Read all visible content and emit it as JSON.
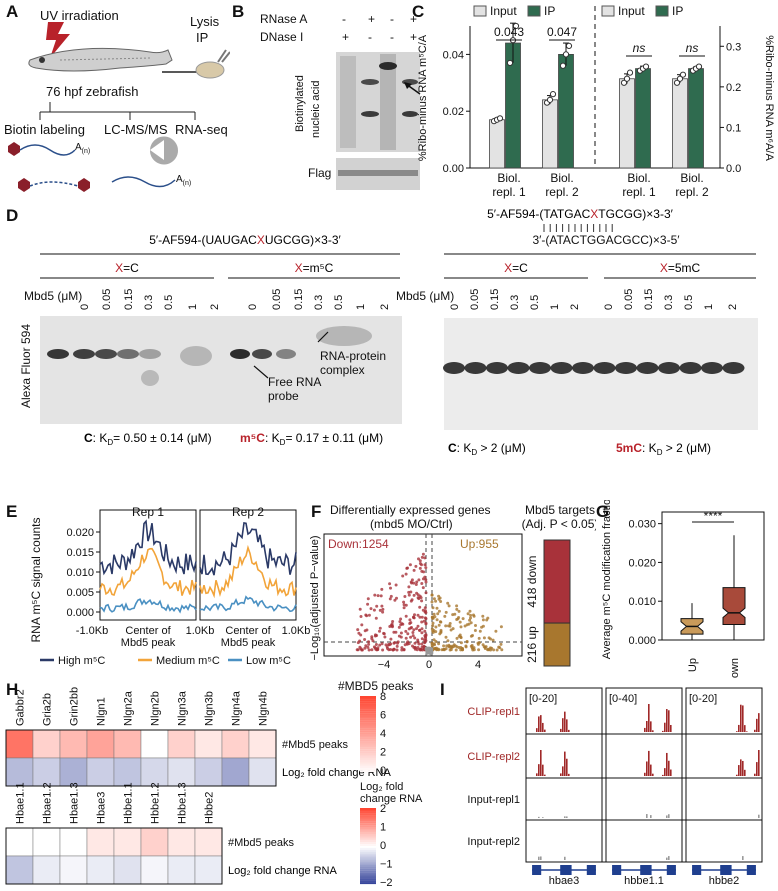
{
  "figure": {
    "panel_labels": [
      "A",
      "B",
      "C",
      "D",
      "E",
      "F",
      "G",
      "H",
      "I"
    ]
  },
  "panelA": {
    "uv": "UV irradiation",
    "lysis": "Lysis",
    "ip": "IP",
    "fish": "76 hpf zebrafish",
    "methods": [
      "Biotin labeling",
      "LC-MS/MS",
      "RNA-seq"
    ],
    "polyA": "A",
    "polyA_sub": "(n)"
  },
  "panelB": {
    "rows": [
      "RNase A",
      "DNase I"
    ],
    "rnaseA": [
      "-",
      "+",
      "-",
      "+"
    ],
    "dnaseI": [
      "+",
      "-",
      "-",
      "+"
    ],
    "ylabel1": "Biotinylated",
    "ylabel2": "nucleic acid",
    "flag": "Flag"
  },
  "panelC": {
    "legend": [
      "Input",
      "IP"
    ],
    "ylabel_left": "%Ribo-minus RNA m⁵C/A",
    "ylabel_right": "%Ribo-minus RNA m⁶A/A",
    "left_ticks": [
      "0.00",
      "0.02",
      "0.04"
    ],
    "right_ticks": [
      "0.0",
      "0.1",
      "0.2",
      "0.3"
    ],
    "groups": [
      "Biol.\nrepl. 1",
      "Biol.\nrepl. 2",
      "Biol.\nrepl. 1",
      "Biol.\nrepl. 2"
    ],
    "pvals": [
      "0.043",
      "0.047",
      "ns",
      "ns"
    ],
    "colors": {
      "input": "#e3e3e3",
      "ip": "#2f6b4f"
    }
  },
  "chart_data": [
    {
      "type": "bar",
      "panel": "C-left",
      "categories": [
        "Biol. repl. 1",
        "Biol. repl. 2"
      ],
      "ylabel": "%Ribo-minus RNA m5C/A",
      "ylim": [
        0,
        0.05
      ],
      "series": [
        {
          "name": "Input",
          "values": [
            0.017,
            0.024
          ]
        },
        {
          "name": "IP",
          "values": [
            0.044,
            0.04
          ]
        }
      ],
      "points": {
        "Input": [
          [
            0.0165,
            0.017,
            0.0175
          ],
          [
            0.023,
            0.024,
            0.026
          ]
        ],
        "IP": [
          [
            0.037,
            0.045,
            0.05
          ],
          [
            0.036,
            0.04,
            0.043
          ]
        ]
      },
      "errors": {
        "Input": [
          0.0005,
          0.0015
        ],
        "IP": [
          0.007,
          0.004
        ]
      }
    },
    {
      "type": "bar",
      "panel": "C-right",
      "categories": [
        "Biol. repl. 1",
        "Biol. repl. 2"
      ],
      "ylabel": "%Ribo-minus RNA m6A/A",
      "ylim": [
        0,
        0.35
      ],
      "series": [
        {
          "name": "Input",
          "values": [
            0.22,
            0.22
          ]
        },
        {
          "name": "IP",
          "values": [
            0.245,
            0.245
          ]
        }
      ],
      "points": {
        "Input": [
          [
            0.21,
            0.22,
            0.235
          ],
          [
            0.21,
            0.22,
            0.23
          ]
        ],
        "IP": [
          [
            0.24,
            0.245,
            0.25
          ],
          [
            0.24,
            0.245,
            0.25
          ]
        ]
      },
      "errors": {
        "Input": [
          0.012,
          0.01
        ],
        "IP": [
          0.006,
          0.004
        ]
      }
    },
    {
      "type": "line",
      "panel": "E",
      "titles": [
        "Rep 1",
        "Rep 2"
      ],
      "ylabel": "RNA m⁵C signal counts",
      "yticks": [
        "0.000",
        "0.005",
        "0.010",
        "0.015",
        "0.020"
      ],
      "ylim": [
        -0.002,
        0.023
      ],
      "xticks": [
        "-1.0Kb",
        "Center of\nMbd5 peak",
        "1.0Kb"
      ],
      "series": [
        {
          "name": "High m⁵C",
          "color": "#2b3a67"
        },
        {
          "name": "Medium m⁵C",
          "color": "#f2a43a"
        },
        {
          "name": "Low m⁵C",
          "color": "#4a90c2"
        }
      ]
    },
    {
      "type": "scatter",
      "panel": "F",
      "title": "Differentially expressed genes",
      "subtitle": "(mbd5 MO/Ctrl)",
      "down_label": "Down:1254",
      "up_label": "Up:955",
      "ylabel": "−Log₁₀(adjusted P−value)",
      "xticks": [
        "−4",
        "0",
        "4"
      ]
    },
    {
      "type": "bar",
      "panel": "F-stack",
      "title": "Mbd5 targets",
      "subtitle": "(Adj. P < 0.05)",
      "categories": [
        "418 down",
        "216 up"
      ],
      "values": [
        418,
        216
      ],
      "colors": [
        "#a8323a",
        "#a8772e"
      ]
    },
    {
      "type": "box",
      "panel": "G",
      "ylabel": "Average m⁵C modification fraction",
      "categories": [
        "Up",
        "Down"
      ],
      "yticks": [
        "0.000",
        "0.010",
        "0.020",
        "0.030"
      ],
      "ylim": [
        0,
        0.033
      ],
      "boxes": [
        {
          "min": 0.0,
          "q1": 0.0015,
          "median": 0.0035,
          "q3": 0.0055,
          "max": 0.0095
        },
        {
          "min": 0.0,
          "q1": 0.004,
          "median": 0.007,
          "q3": 0.0135,
          "max": 0.027
        }
      ],
      "sig": "****",
      "colors": [
        "#c99a5a",
        "#a84a3a"
      ]
    },
    {
      "type": "heatmap",
      "panel": "H-top",
      "columns": [
        "Gabbr2",
        "Gria2b",
        "Grin2bb",
        "Nlgn1",
        "Nlgn2a",
        "Nlgn2b",
        "Nlgn3a",
        "Nlgn3b",
        "Nlgn4a",
        "Nlgn4b"
      ],
      "rows": [
        "#Mbd5 peaks",
        "Log₂ fold change RNA"
      ],
      "peaks": [
        6,
        2,
        3,
        4,
        3,
        0,
        2,
        1,
        2,
        1
      ],
      "lfc": [
        -0.7,
        -0.5,
        -0.8,
        -0.5,
        -0.6,
        -0.4,
        -0.3,
        -0.5,
        -0.9,
        -0.3
      ]
    },
    {
      "type": "heatmap",
      "panel": "H-bottom",
      "columns": [
        "Hbae1.1",
        "Hbae1.2",
        "Hbae1.3",
        "Hbae3",
        "Hbbe1.1",
        "Hbbe1.2",
        "Hbbe1.3",
        "Hbbe2"
      ],
      "rows": [
        "#Mbd5 peaks",
        "Log₂ fold change RNA"
      ],
      "peaks": [
        0,
        0,
        0,
        1,
        1,
        2,
        1,
        1
      ],
      "lfc": [
        -0.6,
        -0.2,
        -0.1,
        -0.2,
        -0.3,
        -0.1,
        -0.2,
        -0.2
      ]
    }
  ],
  "panelD": {
    "left_seq": "5′-AF594-(UAUGAC",
    "left_seq_x": "X",
    "left_seq_end": "UGCGG)×3-3′",
    "right_seq1": "5′-AF594-(TATGAC",
    "right_seq1_x": "X",
    "right_seq1_end": "TGCGG)×3-3′",
    "right_seq2": "3′-(ATACTGGACGCC)×3-5′",
    "xlabel": "X",
    "cond_left": [
      "=C",
      "=m⁵C"
    ],
    "cond_right": [
      "=C",
      "=5mC"
    ],
    "mbd5": "Mbd5 (μM)",
    "conc_left": [
      "0",
      "0.05",
      "0.15",
      "0.3",
      "0.5",
      "1",
      "2"
    ],
    "conc_right": [
      "0",
      "0.05",
      "0.15",
      "0.3",
      "0.5",
      "1",
      "2"
    ],
    "ylabel": "Alexa Fluor 594",
    "complex": "RNA-protein\ncomplex",
    "free": "Free RNA\nprobe",
    "kd_left_c": "C",
    "kd_left_c_val": ": K",
    "kd_left_c_num": "= 0.50 ± 0.14 (μM)",
    "kd_left_m": "m⁵C",
    "kd_left_m_num": "= 0.17 ± 0.11 (μM)",
    "kd_right_c": "C",
    "kd_right_c_num": ": K",
    "kd_right_c_val": " > 2 (μM)",
    "kd_right_m": "5mC",
    "kd_right_m_val": " > 2 (μM)",
    "sub_d": "D"
  },
  "panelE": {
    "legend": [
      "High m⁵C",
      "Medium m⁵C",
      "Low m⁵C"
    ]
  },
  "panelH": {
    "cb1_title": "#MBD5 peaks",
    "cb1_ticks": [
      "8",
      "6",
      "4",
      "2",
      "0"
    ],
    "cb2_title1": "Log₂ fold",
    "cb2_title2": "change RNA",
    "cb2_ticks": [
      "2",
      "1",
      "0",
      "−1",
      "−2"
    ]
  },
  "panelI": {
    "ranges": [
      "[0-20]",
      "[0-40]",
      "[0-20]"
    ],
    "tracks": [
      "CLIP-repl1",
      "CLIP-repl2",
      "Input-repl1",
      "Input-repl2"
    ],
    "genes": [
      "hbae3",
      "hbbe1.1",
      "hbbe2"
    ],
    "colors": {
      "clip": "#a02828",
      "input": "#9a9a9a",
      "gene": "#1f3f8f"
    }
  }
}
